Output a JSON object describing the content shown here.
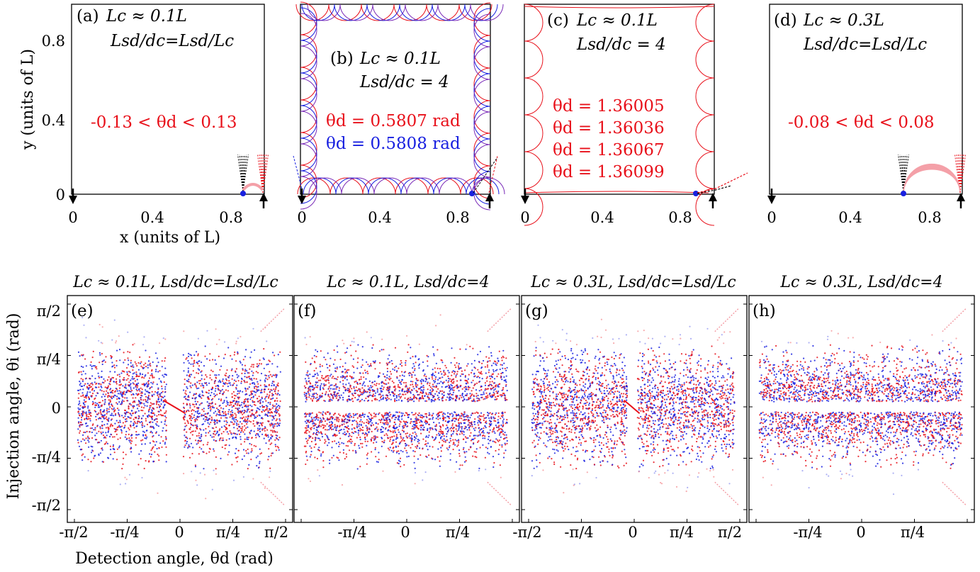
{
  "top_axes": {
    "ylabel": "y (units of L)",
    "xlabel": "x (units of L)",
    "y_ticks": [
      "0",
      "0.4",
      "0.8"
    ],
    "x_ticks_a": [
      "0",
      "0.4",
      "0.8"
    ],
    "x_ticks_b": [
      "0",
      "0.4",
      "0.8"
    ],
    "x_ticks_c": [
      "0",
      "0.4",
      "0.8"
    ],
    "x_ticks_d": [
      "0",
      "0.4",
      "0.8"
    ]
  },
  "panels_top": {
    "a": {
      "label": "(a)",
      "line1": "Lc ≈ 0.1L",
      "line2": "Lsd/dc=Lsd/Lc",
      "range": "-0.13 < θd < 0.13"
    },
    "b": {
      "label": "(b)",
      "line1": "Lc ≈ 0.1L",
      "line2": "Lsd/dc = 4",
      "theta_red": "θd = 0.5807 rad",
      "theta_blue": "θd = 0.5808 rad"
    },
    "c": {
      "label": "(c)",
      "line1": "Lc ≈ 0.1L",
      "line2": "Lsd/dc = 4",
      "thetas": [
        "θd = 1.36005",
        "θd = 1.36036",
        "θd = 1.36067",
        "θd = 1.36099"
      ]
    },
    "d": {
      "label": "(d)",
      "line1": "Lc ≈ 0.3L",
      "line2": "Lsd/dc=Lsd/Lc",
      "range": "-0.08 < θd < 0.08"
    }
  },
  "panels_bottom": {
    "e": {
      "label": "(e)",
      "title": "Lc ≈ 0.1L, Lsd/dc=Lsd/Lc"
    },
    "f": {
      "label": "(f)",
      "title": "Lc ≈ 0.1L, Lsd/dc=4"
    },
    "g": {
      "label": "(g)",
      "title": "Lc ≈ 0.3L, Lsd/dc=Lsd/Lc"
    },
    "h": {
      "label": "(h)",
      "title": "Lc ≈ 0.3L, Lsd/dc=4"
    }
  },
  "bottom_axes": {
    "ylabel": "Injection angle, θi (rad)",
    "xlabel": "Detection angle, θd (rad)",
    "y_ticks": [
      "π/2",
      "π/4",
      "0",
      "-π/4",
      "-π/2"
    ],
    "x_ticks_full": [
      "-π/2",
      "-π/4",
      "0",
      "π/4",
      "π/2"
    ],
    "x_ticks_inner": [
      "-π/4",
      "0",
      "π/4"
    ]
  },
  "colors": {
    "red": "#e8101a",
    "blue": "#1820e0",
    "pink": "#f4a0a8"
  },
  "chart_data": [
    {
      "type": "scatter",
      "title": "Lc ≈ 0.1L, Lsd/dc=Lsd/Lc",
      "xlabel": "Detection angle, θd (rad)",
      "ylabel": "Injection angle, θi (rad)",
      "xlim": [
        -1.5708,
        1.5708
      ],
      "ylim": [
        -1.5708,
        1.5708
      ],
      "gap_x": [
        -0.2,
        0.05
      ],
      "central_band": false,
      "series": [
        {
          "name": "red"
        },
        {
          "name": "blue"
        }
      ]
    },
    {
      "type": "scatter",
      "title": "Lc ≈ 0.1L, Lsd/dc=4",
      "xlabel": "Detection angle, θd (rad)",
      "ylabel": "Injection angle, θi (rad)",
      "xlim": [
        -1.5708,
        1.5708
      ],
      "ylim": [
        -1.5708,
        1.5708
      ],
      "gap_y": [
        -0.05,
        0.05
      ],
      "central_band": true,
      "series": [
        {
          "name": "red"
        },
        {
          "name": "blue"
        }
      ]
    },
    {
      "type": "scatter",
      "title": "Lc ≈ 0.3L, Lsd/dc=Lsd/Lc",
      "xlabel": "Detection angle, θd (rad)",
      "ylabel": "Injection angle, θi (rad)",
      "xlim": [
        -1.5708,
        1.5708
      ],
      "ylim": [
        -1.5708,
        1.5708
      ],
      "gap_x": [
        -0.1,
        0.05
      ],
      "central_band": false,
      "series": [
        {
          "name": "red"
        },
        {
          "name": "blue"
        }
      ]
    },
    {
      "type": "scatter",
      "title": "Lc ≈ 0.3L, Lsd/dc=4",
      "xlabel": "Detection angle, θd (rad)",
      "ylabel": "Injection angle, θi (rad)",
      "xlim": [
        -1.5708,
        1.5708
      ],
      "ylim": [
        -1.5708,
        1.5708
      ],
      "gap_y": [
        -0.05,
        0.05
      ],
      "central_band": true,
      "series": [
        {
          "name": "red"
        },
        {
          "name": "blue"
        }
      ]
    }
  ]
}
